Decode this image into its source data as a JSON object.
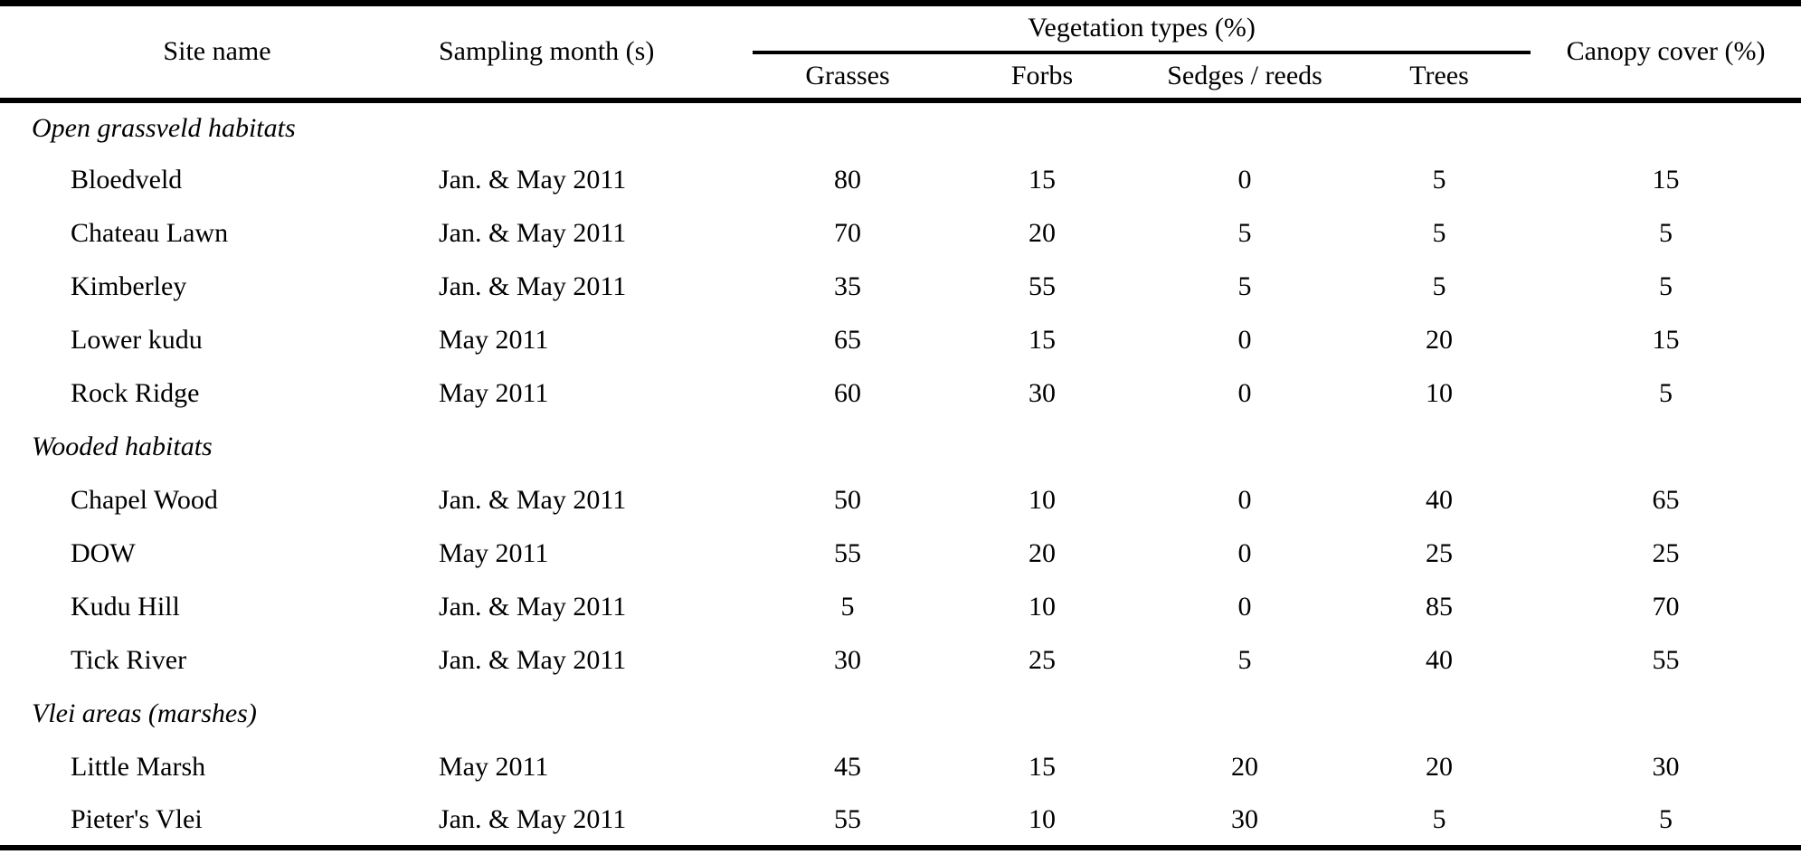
{
  "page": {
    "background": "#ffffff",
    "text_color": "#000000",
    "rule_color": "#000000"
  },
  "table": {
    "headers": {
      "site_name": "Site name",
      "sampling_month": "Sampling month (s)",
      "vegetation_group": "Vegetation types (%)",
      "subheaders": {
        "grasses": "Grasses",
        "forbs": "Forbs",
        "sedges_reeds": "Sedges / reeds",
        "trees": "Trees"
      },
      "canopy_cover": "Canopy cover (%)"
    },
    "sections": [
      {
        "label": "Open grassveld habitats",
        "rows": [
          {
            "site": "Bloedveld",
            "months": "Jan. & May 2011",
            "grasses": "80",
            "forbs": "15",
            "sedges_reeds": "0",
            "trees": "5",
            "canopy_cover": "15"
          },
          {
            "site": "Chateau Lawn",
            "months": "Jan. & May 2011",
            "grasses": "70",
            "forbs": "20",
            "sedges_reeds": "5",
            "trees": "5",
            "canopy_cover": "5"
          },
          {
            "site": "Kimberley",
            "months": "Jan. & May 2011",
            "grasses": "35",
            "forbs": "55",
            "sedges_reeds": "5",
            "trees": "5",
            "canopy_cover": "5"
          },
          {
            "site": "Lower kudu",
            "months": "May 2011",
            "grasses": "65",
            "forbs": "15",
            "sedges_reeds": "0",
            "trees": "20",
            "canopy_cover": "15"
          },
          {
            "site": "Rock Ridge",
            "months": "May 2011",
            "grasses": "60",
            "forbs": "30",
            "sedges_reeds": "0",
            "trees": "10",
            "canopy_cover": "5"
          }
        ]
      },
      {
        "label": "Wooded habitats",
        "rows": [
          {
            "site": "Chapel Wood",
            "months": "Jan. & May 2011",
            "grasses": "50",
            "forbs": "10",
            "sedges_reeds": "0",
            "trees": "40",
            "canopy_cover": "65"
          },
          {
            "site": "DOW",
            "months": "May 2011",
            "grasses": "55",
            "forbs": "20",
            "sedges_reeds": "0",
            "trees": "25",
            "canopy_cover": "25"
          },
          {
            "site": "Kudu Hill",
            "months": "Jan. & May 2011",
            "grasses": "5",
            "forbs": "10",
            "sedges_reeds": "0",
            "trees": "85",
            "canopy_cover": "70"
          },
          {
            "site": "Tick River",
            "months": "Jan. & May 2011",
            "grasses": "30",
            "forbs": "25",
            "sedges_reeds": "5",
            "trees": "40",
            "canopy_cover": "55"
          }
        ]
      },
      {
        "label": "Vlei areas (marshes)",
        "rows": [
          {
            "site": "Little Marsh",
            "months": "May 2011",
            "grasses": "45",
            "forbs": "15",
            "sedges_reeds": "20",
            "trees": "20",
            "canopy_cover": "30"
          },
          {
            "site": "Pieter's Vlei",
            "months": "Jan. & May 2011",
            "grasses": "55",
            "forbs": "10",
            "sedges_reeds": "30",
            "trees": "5",
            "canopy_cover": "5"
          }
        ]
      }
    ]
  }
}
